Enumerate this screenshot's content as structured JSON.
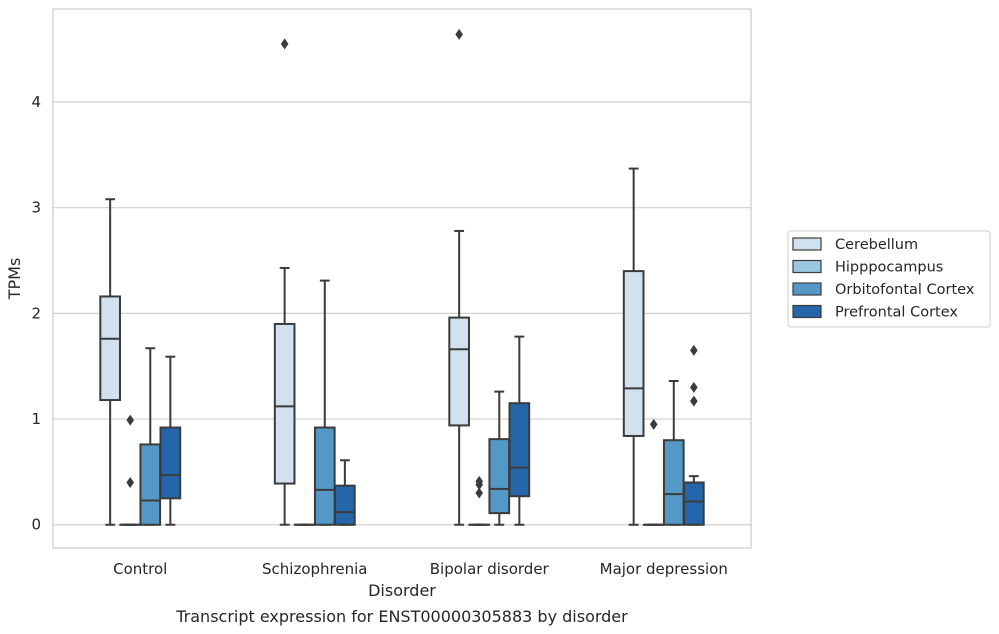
{
  "chart_data": {
    "type": "box",
    "caption": "Transcript expression for ENST00000305883 by disorder",
    "xlabel": "Disorder",
    "ylabel": "TPMs",
    "ylim": [
      -0.22,
      4.88
    ],
    "yticks": [
      0,
      1,
      2,
      3,
      4
    ],
    "grid": "horizontal",
    "legend_position": "right",
    "categories": [
      "Control",
      "Schizophrenia",
      "Bipolar disorder",
      "Major depression"
    ],
    "series": [
      {
        "name": "Cerebellum",
        "color": "#d2e1f0",
        "boxes": [
          {
            "min": 0.0,
            "q1": 1.18,
            "median": 1.76,
            "q3": 2.16,
            "max": 3.08,
            "outliers": []
          },
          {
            "min": 0.0,
            "q1": 0.39,
            "median": 1.12,
            "q3": 1.9,
            "max": 2.43,
            "outliers": [
              4.55
            ]
          },
          {
            "min": 0.0,
            "q1": 0.94,
            "median": 1.66,
            "q3": 1.96,
            "max": 2.78,
            "outliers": [
              4.64
            ]
          },
          {
            "min": 0.0,
            "q1": 0.84,
            "median": 1.29,
            "q3": 2.4,
            "max": 3.37,
            "outliers": []
          }
        ]
      },
      {
        "name": "Hipppocampus",
        "color": "#9ac8e0",
        "boxes": [
          {
            "min": 0.0,
            "q1": 0.0,
            "median": 0.0,
            "q3": 0.0,
            "max": 0.0,
            "outliers": [
              0.99,
              0.4
            ]
          },
          {
            "min": 0.0,
            "q1": 0.0,
            "median": 0.0,
            "q3": 0.0,
            "max": 0.0,
            "outliers": []
          },
          {
            "min": 0.0,
            "q1": 0.0,
            "median": 0.0,
            "q3": 0.0,
            "max": 0.0,
            "outliers": [
              0.41,
              0.38,
              0.3
            ]
          },
          {
            "min": 0.0,
            "q1": 0.0,
            "median": 0.0,
            "q3": 0.0,
            "max": 0.0,
            "outliers": [
              0.95
            ]
          }
        ]
      },
      {
        "name": "Orbitofontal Cortex",
        "color": "#5398c7",
        "boxes": [
          {
            "min": 0.0,
            "q1": 0.0,
            "median": 0.23,
            "q3": 0.76,
            "max": 1.67,
            "outliers": []
          },
          {
            "min": 0.0,
            "q1": 0.0,
            "median": 0.33,
            "q3": 0.92,
            "max": 2.31,
            "outliers": []
          },
          {
            "min": 0.0,
            "q1": 0.11,
            "median": 0.34,
            "q3": 0.81,
            "max": 1.26,
            "outliers": []
          },
          {
            "min": 0.0,
            "q1": 0.0,
            "median": 0.29,
            "q3": 0.8,
            "max": 1.36,
            "outliers": []
          }
        ]
      },
      {
        "name": "Prefrontal Cortex",
        "color": "#2466a9",
        "boxes": [
          {
            "min": 0.0,
            "q1": 0.25,
            "median": 0.47,
            "q3": 0.92,
            "max": 1.59,
            "outliers": []
          },
          {
            "min": 0.0,
            "q1": 0.0,
            "median": 0.12,
            "q3": 0.37,
            "max": 0.61,
            "outliers": []
          },
          {
            "min": 0.0,
            "q1": 0.27,
            "median": 0.54,
            "q3": 1.15,
            "max": 1.78,
            "outliers": []
          },
          {
            "min": 0.0,
            "q1": 0.0,
            "median": 0.22,
            "q3": 0.4,
            "max": 0.46,
            "outliers": [
              1.65,
              1.3,
              1.17
            ]
          }
        ]
      }
    ]
  }
}
